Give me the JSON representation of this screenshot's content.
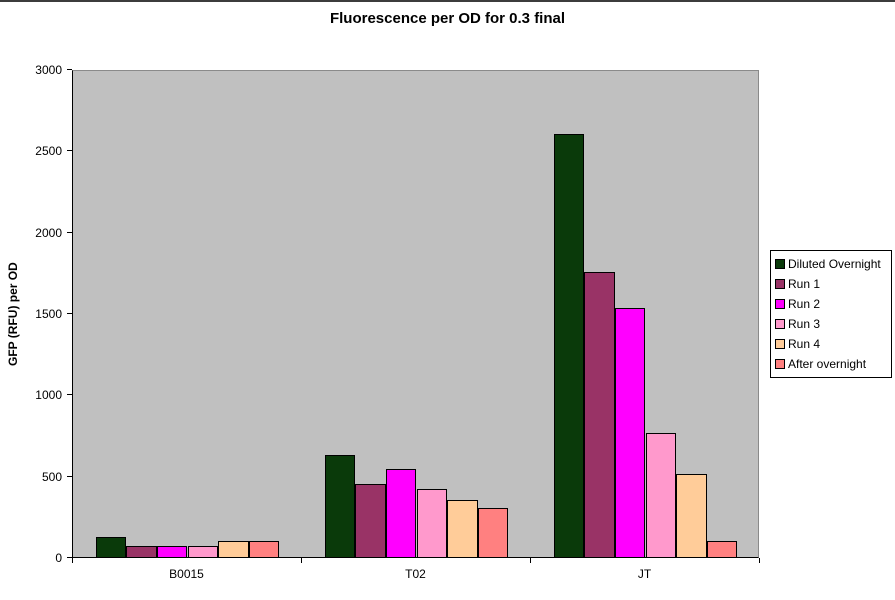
{
  "window": {
    "background": "#FFFFFF",
    "top_border_color": "#3C3C3C"
  },
  "chart_data": {
    "type": "bar",
    "title": "Fluorescence per OD for 0.3 final",
    "ylabel": "GFP (RFU) per OD",
    "xlabel": "",
    "categories": [
      "B0015",
      "T02",
      "JT"
    ],
    "series": [
      {
        "name": "Diluted Overnight",
        "color": "#0A3A0A",
        "values": [
          125,
          630,
          2600
        ]
      },
      {
        "name": "Run 1",
        "color": "#993366",
        "values": [
          70,
          450,
          1750
        ]
      },
      {
        "name": "Run 2",
        "color": "#FF00FF",
        "values": [
          70,
          540,
          1530
        ]
      },
      {
        "name": "Run 3",
        "color": "#FF99CC",
        "values": [
          70,
          420,
          760
        ]
      },
      {
        "name": "Run 4",
        "color": "#FFCC99",
        "values": [
          100,
          350,
          510
        ]
      },
      {
        "name": "After overnight",
        "color": "#FF8080",
        "values": [
          100,
          300,
          100
        ]
      }
    ],
    "ylim": [
      0,
      3000
    ],
    "yticks": [
      0,
      500,
      1000,
      1500,
      2000,
      2500,
      3000
    ],
    "grid": false,
    "legend_position": "right",
    "plot_background": "#C0C0C0",
    "bar_gap_width_percent": 150
  }
}
